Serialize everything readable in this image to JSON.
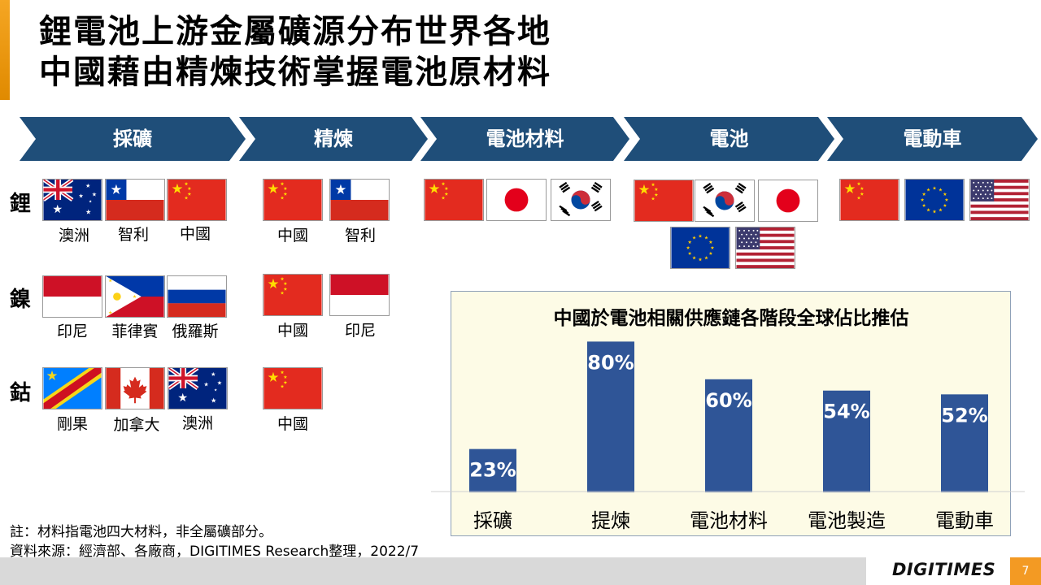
{
  "title": {
    "line1": "鋰電池上游金屬礦源分布世界各地",
    "line2": "中國藉由精煉技術掌握電池原材料"
  },
  "stages": [
    "採礦",
    "精煉",
    "電池材料",
    "電池",
    "電動車"
  ],
  "metals": [
    "鋰",
    "鎳",
    "鈷"
  ],
  "flag_names": {
    "lithium_mining": [
      "澳洲",
      "智利",
      "中國"
    ],
    "lithium_refining": [
      "中國",
      "智利"
    ],
    "nickel_mining": [
      "印尼",
      "菲律賓",
      "俄羅斯"
    ],
    "nickel_refining": [
      "中國",
      "印尼"
    ],
    "cobalt_mining": [
      "剛果",
      "加拿大",
      "澳洲"
    ],
    "cobalt_refining": [
      "中國"
    ]
  },
  "flag_icons": {
    "battery_materials": [
      "china-flag-icon",
      "japan-flag-icon",
      "korea-flag-icon"
    ],
    "battery": [
      "china-flag-icon",
      "korea-flag-icon",
      "japan-flag-icon",
      "eu-flag-icon",
      "usa-flag-icon"
    ],
    "ev": [
      "china-flag-icon",
      "eu-flag-icon",
      "usa-flag-icon"
    ]
  },
  "colors": {
    "chevron": "#1f4e79",
    "bar": "#2f5597",
    "accent": "#f39a23"
  },
  "chart_data": {
    "type": "bar",
    "title": "中國於電池相關供應鏈各階段全球佔比推估",
    "categories": [
      "採礦",
      "提煉",
      "電池材料",
      "電池製造",
      "電動車"
    ],
    "values": [
      23,
      80,
      60,
      54,
      52
    ],
    "labels": [
      "23%",
      "80%",
      "60%",
      "54%",
      "52%"
    ],
    "unit": "%",
    "ylim": [
      0,
      100
    ],
    "grid": false,
    "legend": "none"
  },
  "notes": {
    "note": "註：材料指電池四大材料，非全屬礦部分。",
    "source": "資料來源：經濟部、各廠商，DIGITIMES Research整理，2022/7"
  },
  "footer": {
    "logo": "DIGITIMES",
    "page": "7"
  }
}
